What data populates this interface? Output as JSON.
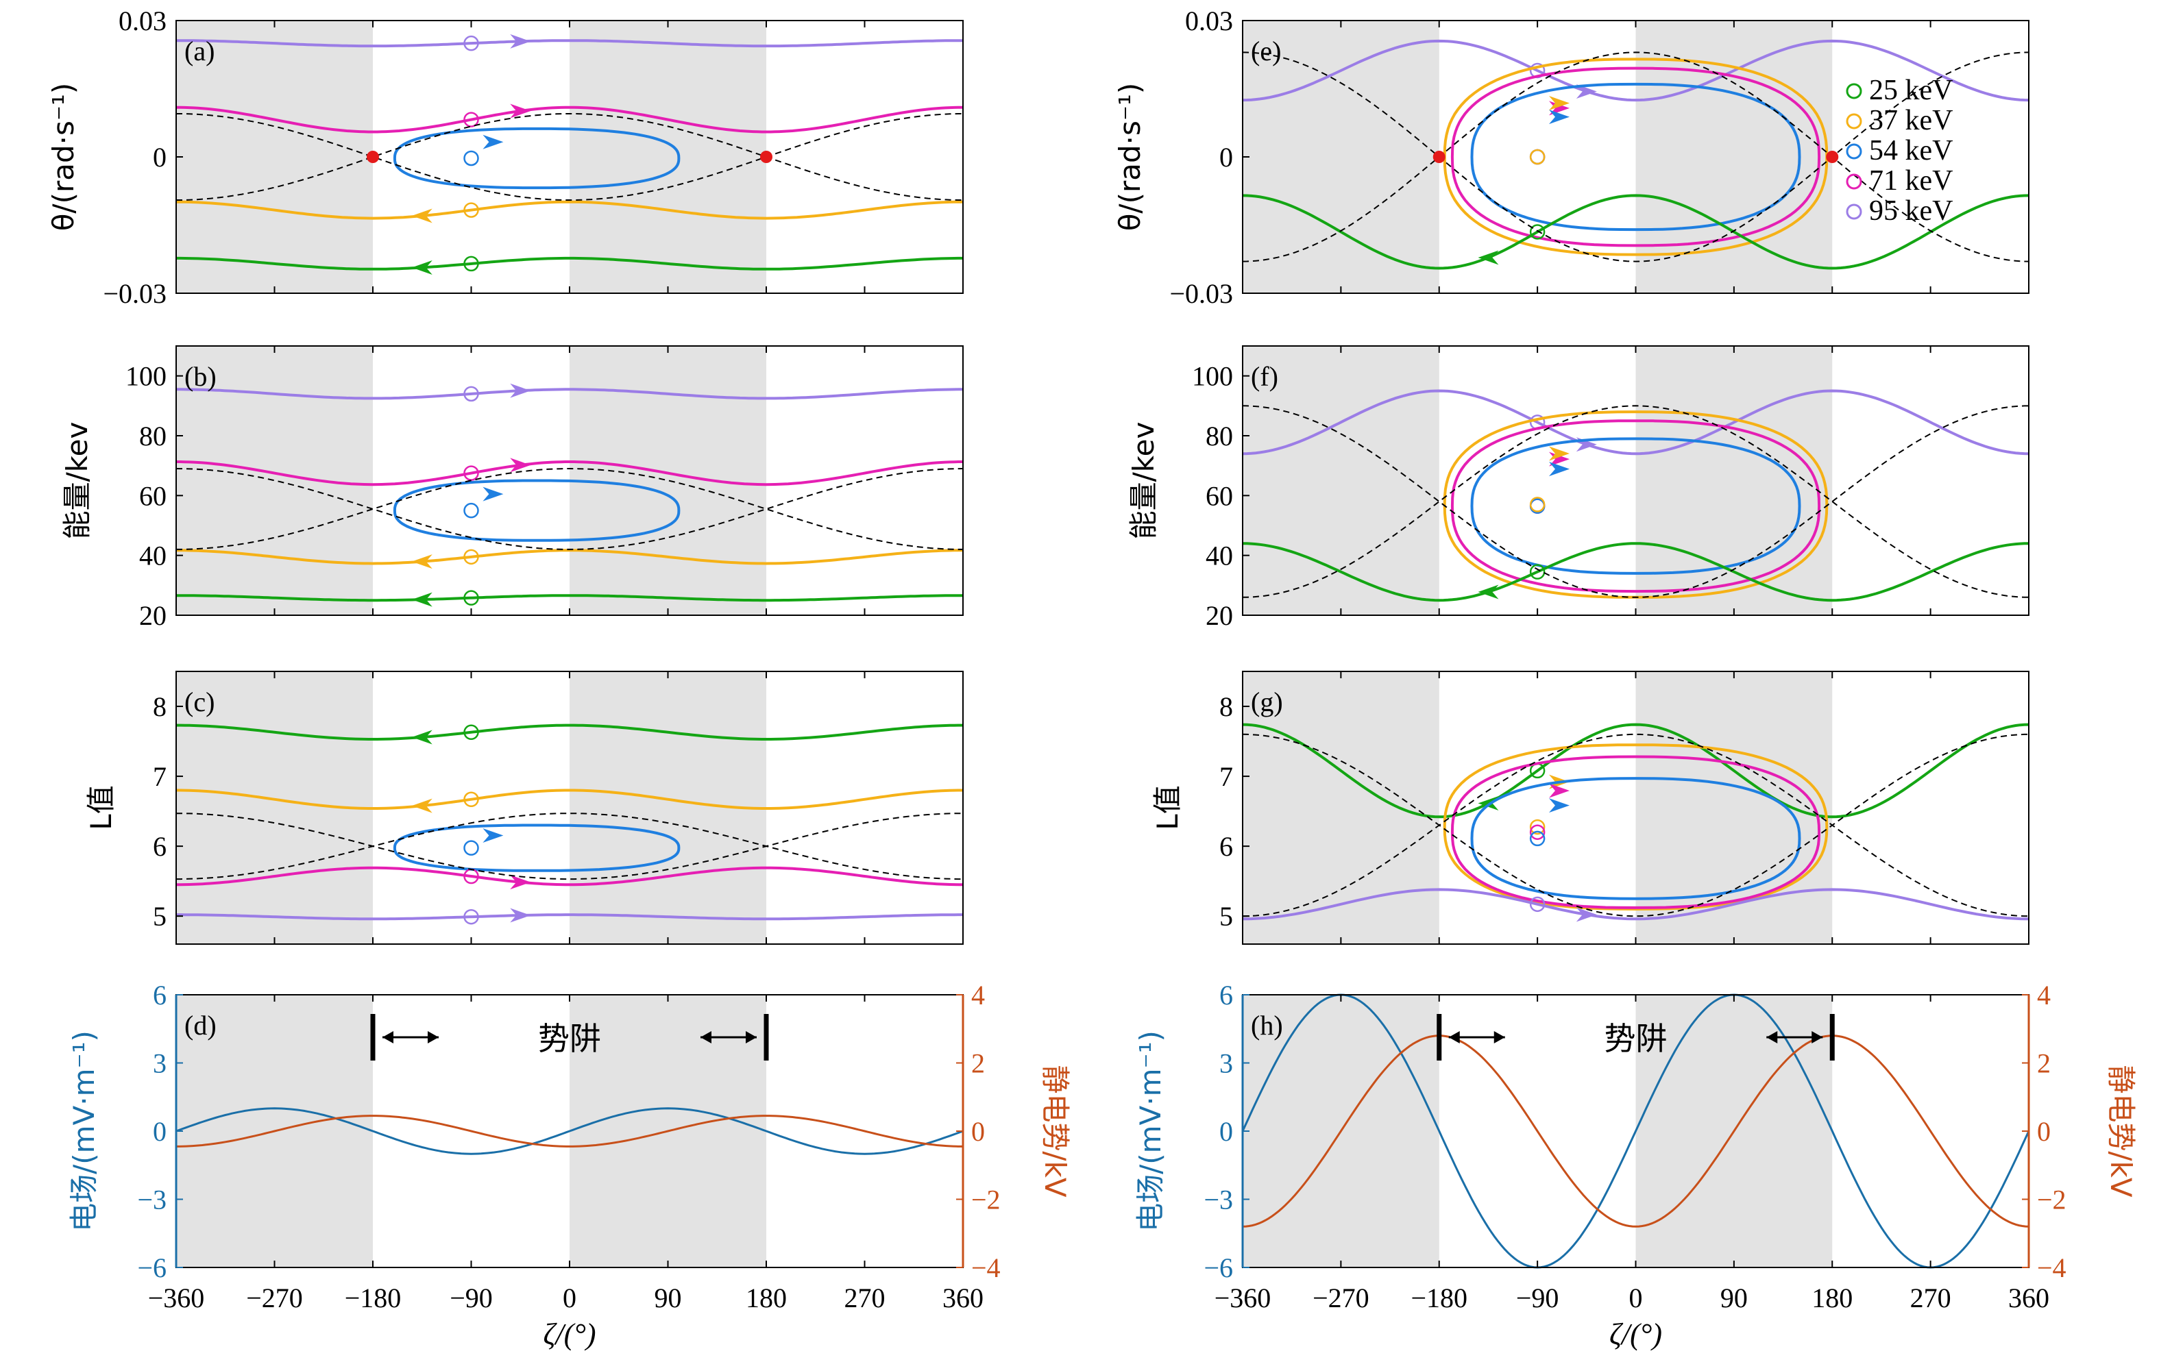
{
  "legend": [
    {
      "label": "25 keV",
      "color": "#14a514"
    },
    {
      "label": "37 keV",
      "color": "#f5b117"
    },
    {
      "label": "54 keV",
      "color": "#1f7fe0"
    },
    {
      "label": "71 keV",
      "color": "#e51fb3"
    },
    {
      "label": "95 keV",
      "color": "#9b7de6"
    }
  ],
  "colors": {
    "shade": "#e3e3e3",
    "separatrix": "#000000",
    "efield": "#1a6fa8",
    "potential": "#c8501a",
    "xpoint": "#e41a1a"
  },
  "axis_labels": {
    "theta": "θ/(rad·s⁻¹)",
    "energy": "能量/kev",
    "L": "L值",
    "efield": "电场/(mV·m⁻¹)",
    "potential": "静电势/kV",
    "zeta": "ζ/(°)"
  },
  "ticks": {
    "x": [
      "−360",
      "−270",
      "−180",
      "−90",
      "0",
      "90",
      "180",
      "270",
      "360"
    ],
    "theta": [
      "0.03",
      "0",
      "−0.03"
    ],
    "energy": [
      "100",
      "80",
      "60",
      "40",
      "20"
    ],
    "L": [
      "8",
      "7",
      "6",
      "5"
    ],
    "efield": [
      "6",
      "3",
      "0",
      "−3",
      "−6"
    ],
    "potential": [
      "4",
      "2",
      "0",
      "−2",
      "−4"
    ]
  },
  "panels": {
    "a": "(a)",
    "b": "(b)",
    "c": "(c)",
    "d": "(d)",
    "e": "(e)",
    "f": "(f)",
    "g": "(g)",
    "h": "(h)"
  },
  "potential_well_label": "势阱",
  "chart_data": [
    {
      "type": "line",
      "panel": "(a)",
      "ylabel": "θ/(rad·s⁻¹)",
      "xlabel": "",
      "xlim": [
        -360,
        360
      ],
      "ylim": [
        -0.03,
        0.03
      ],
      "x_points_deg": [
        -180,
        180
      ],
      "series": [
        {
          "name": "95 keV",
          "y_mean": 0.025,
          "y_amp": 0.0006,
          "direction": "right"
        },
        {
          "name": "71 keV",
          "y_mean": 0.0082,
          "y_amp": 0.0027,
          "direction": "right"
        },
        {
          "name": "54 keV",
          "closed_orbit": true,
          "center_deg": -30,
          "half_width_deg": 130,
          "y_top": 0.0062,
          "y_bottom": -0.0068
        },
        {
          "name": "37 keV",
          "y_mean": -0.0117,
          "y_amp": 0.0018,
          "direction": "left"
        },
        {
          "name": "25 keV",
          "y_mean": -0.0235,
          "y_amp": 0.0012,
          "direction": "left"
        }
      ],
      "separatrix_amp": 0.0095
    },
    {
      "type": "line",
      "panel": "(b)",
      "ylabel": "能量/kev",
      "xlabel": "",
      "xlim": [
        -360,
        360
      ],
      "ylim": [
        20,
        110
      ],
      "series": [
        {
          "name": "95 keV",
          "y_mean": 94,
          "y_amp": 1.5,
          "direction": "right"
        },
        {
          "name": "71 keV",
          "y_mean": 67.5,
          "y_amp": 3.8,
          "direction": "right"
        },
        {
          "name": "54 keV",
          "closed_orbit": true,
          "center_deg": -30,
          "half_width_deg": 130,
          "y_top": 65,
          "y_bottom": 45
        },
        {
          "name": "37 keV",
          "y_mean": 39.5,
          "y_amp": 2.2,
          "direction": "left"
        },
        {
          "name": "25 keV",
          "y_mean": 25.8,
          "y_amp": 0.8,
          "direction": "left"
        }
      ],
      "separatrix_center": 55.5,
      "separatrix_amp": 13.5
    },
    {
      "type": "line",
      "panel": "(c)",
      "ylabel": "L值",
      "xlabel": "",
      "xlim": [
        -360,
        360
      ],
      "ylim": [
        4.6,
        8.5
      ],
      "series": [
        {
          "name": "25 keV",
          "y_mean": 7.63,
          "y_amp": 0.1,
          "direction": "left"
        },
        {
          "name": "37 keV",
          "y_mean": 6.67,
          "y_amp": 0.13,
          "direction": "left"
        },
        {
          "name": "54 keV",
          "closed_orbit": true,
          "center_deg": -30,
          "half_width_deg": 130,
          "y_top": 6.3,
          "y_bottom": 5.65
        },
        {
          "name": "71 keV",
          "y_mean": 5.57,
          "y_amp": 0.12,
          "direction": "right"
        },
        {
          "name": "95 keV",
          "y_mean": 4.99,
          "y_amp": 0.03,
          "direction": "right"
        }
      ],
      "separatrix_center": 6.0,
      "separatrix_amp": 0.47
    },
    {
      "type": "line",
      "panel": "(d)",
      "xlabel": "ζ/(°)",
      "xlim": [
        -360,
        360
      ],
      "y_left": {
        "label": "电场/(mV·m⁻¹)",
        "lim": [
          -6,
          6
        ]
      },
      "y_right": {
        "label": "静电势/kV",
        "lim": [
          -4,
          4
        ]
      },
      "series": [
        {
          "name": "电场",
          "axis": "left",
          "amplitude": 1.0,
          "form": "sin(ζ)"
        },
        {
          "name": "静电势",
          "axis": "right",
          "amplitude": 0.45,
          "form": "-cos(ζ)"
        }
      ],
      "well_edges_deg": [
        -180,
        180
      ]
    },
    {
      "type": "line",
      "panel": "(e)",
      "ylabel": "θ/(rad·s⁻¹)",
      "xlabel": "",
      "xlim": [
        -360,
        360
      ],
      "ylim": [
        -0.03,
        0.03
      ],
      "x_points_deg": [
        -180,
        180
      ],
      "series": [
        {
          "name": "95 keV",
          "y_mean": 0.019,
          "y_amp": 0.0065,
          "direction": "right"
        },
        {
          "name": "71 keV",
          "closed_orbit": true,
          "center_deg": 0,
          "half_width_deg": 168,
          "y_top": 0.0195,
          "y_bottom": -0.0195
        },
        {
          "name": "54 keV",
          "closed_orbit": true,
          "center_deg": 0,
          "half_width_deg": 150,
          "y_top": 0.016,
          "y_bottom": -0.016
        },
        {
          "name": "37 keV",
          "closed_orbit": true,
          "center_deg": 0,
          "half_width_deg": 175,
          "y_top": 0.0215,
          "y_bottom": -0.0215
        },
        {
          "name": "25 keV",
          "y_mean": -0.0165,
          "y_amp": 0.008,
          "direction": "left"
        }
      ],
      "separatrix_amp": 0.023
    },
    {
      "type": "line",
      "panel": "(f)",
      "ylabel": "能量/kev",
      "xlabel": "",
      "xlim": [
        -360,
        360
      ],
      "ylim": [
        20,
        110
      ],
      "series": [
        {
          "name": "95 keV",
          "y_mean": 84.5,
          "y_amp": 10.5,
          "direction": "right"
        },
        {
          "name": "71 keV",
          "closed_orbit": true,
          "center_deg": 0,
          "half_width_deg": 168,
          "y_top": 85,
          "y_bottom": 28
        },
        {
          "name": "54 keV",
          "closed_orbit": true,
          "center_deg": 0,
          "half_width_deg": 150,
          "y_top": 79,
          "y_bottom": 34
        },
        {
          "name": "37 keV",
          "closed_orbit": true,
          "center_deg": 0,
          "half_width_deg": 175,
          "y_top": 88,
          "y_bottom": 26
        },
        {
          "name": "25 keV",
          "y_mean": 34.5,
          "y_amp": 9.5,
          "direction": "left"
        }
      ],
      "separatrix_center": 58,
      "separatrix_amp": 32
    },
    {
      "type": "line",
      "panel": "(g)",
      "ylabel": "L值",
      "xlabel": "",
      "xlim": [
        -360,
        360
      ],
      "ylim": [
        4.6,
        8.5
      ],
      "series": [
        {
          "name": "25 keV",
          "y_mean": 7.08,
          "y_amp": 0.66,
          "direction": "left"
        },
        {
          "name": "37 keV",
          "closed_orbit": true,
          "center_deg": 0,
          "half_width_deg": 175,
          "y_top": 7.45,
          "y_bottom": 5.1
        },
        {
          "name": "71 keV",
          "closed_orbit": true,
          "center_deg": 0,
          "half_width_deg": 168,
          "y_top": 7.28,
          "y_bottom": 5.12
        },
        {
          "name": "54 keV",
          "closed_orbit": true,
          "center_deg": 0,
          "half_width_deg": 150,
          "y_top": 6.97,
          "y_bottom": 5.25
        },
        {
          "name": "95 keV",
          "y_mean": 5.17,
          "y_amp": 0.21,
          "direction": "right"
        }
      ],
      "separatrix_center": 6.3,
      "separatrix_amp": 1.3
    },
    {
      "type": "line",
      "panel": "(h)",
      "xlabel": "ζ/(°)",
      "xlim": [
        -360,
        360
      ],
      "y_left": {
        "label": "电场/(mV·m⁻¹)",
        "lim": [
          -6,
          6
        ]
      },
      "y_right": {
        "label": "静电势/kV",
        "lim": [
          -4,
          4
        ]
      },
      "series": [
        {
          "name": "电场",
          "axis": "left",
          "amplitude": 6.0,
          "form": "sin(ζ)"
        },
        {
          "name": "静电势",
          "axis": "right",
          "amplitude": 2.8,
          "form": "-cos(ζ)"
        }
      ],
      "well_edges_deg": [
        -180,
        180
      ]
    }
  ]
}
